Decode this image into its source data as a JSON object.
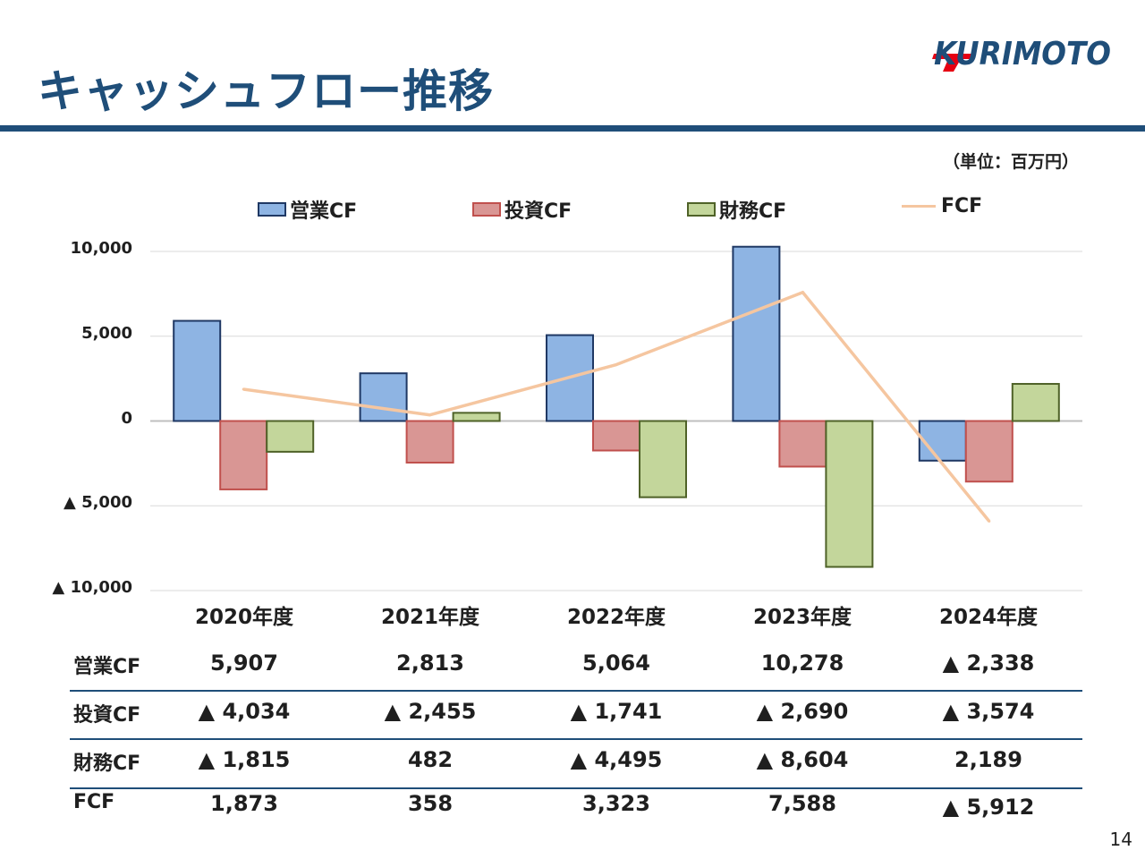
{
  "slide": {
    "title": "キャッシュフロー推移",
    "unit": "（単位：百万円）",
    "page_number": "14"
  },
  "logo": {
    "text": "KURIMOTO",
    "colors": {
      "text": "#1f4e79",
      "accent": "#e60012"
    }
  },
  "colors": {
    "title": "#1f4e79",
    "operating": "#8eb4e3",
    "operating_border": "#1f3864",
    "investing": "#d99694",
    "investing_border": "#c0504d",
    "financing": "#c3d69b",
    "financing_border": "#4f6228",
    "fcf": "#f5c6a0",
    "grid": "#d9d9d9"
  },
  "chart_data": {
    "type": "bar",
    "categories": [
      "2020年度",
      "2021年度",
      "2022年度",
      "2023年度",
      "2024年度"
    ],
    "series": [
      {
        "name": "営業CF",
        "kind": "bar",
        "values": [
          5907,
          2813,
          5064,
          10278,
          -2338
        ]
      },
      {
        "name": "投資CF",
        "kind": "bar",
        "values": [
          -4034,
          -2455,
          -1741,
          -2690,
          -3574
        ]
      },
      {
        "name": "財務CF",
        "kind": "bar",
        "values": [
          -1815,
          482,
          -4495,
          -8604,
          2189
        ]
      },
      {
        "name": "FCF",
        "kind": "line",
        "values": [
          1873,
          358,
          3323,
          7588,
          -5912
        ]
      }
    ],
    "ylim": [
      -10000,
      10000
    ],
    "yticks": [
      "10,000",
      "5,000",
      "0",
      "▲ 5,000",
      "▲ 10,000"
    ],
    "legend": "top",
    "grid": true
  },
  "table": {
    "rows": [
      {
        "label": "営業CF",
        "cells": [
          "5,907",
          "2,813",
          "5,064",
          "10,278",
          "▲ 2,338"
        ]
      },
      {
        "label": "投資CF",
        "cells": [
          "▲ 4,034",
          "▲ 2,455",
          "▲ 1,741",
          "▲ 2,690",
          "▲ 3,574"
        ]
      },
      {
        "label": "財務CF",
        "cells": [
          "▲ 1,815",
          "482",
          "▲ 4,495",
          "▲ 8,604",
          "2,189"
        ]
      },
      {
        "label": "FCF",
        "cells": [
          "1,873",
          "358",
          "3,323",
          "7,588",
          "▲ 5,912"
        ]
      }
    ]
  }
}
